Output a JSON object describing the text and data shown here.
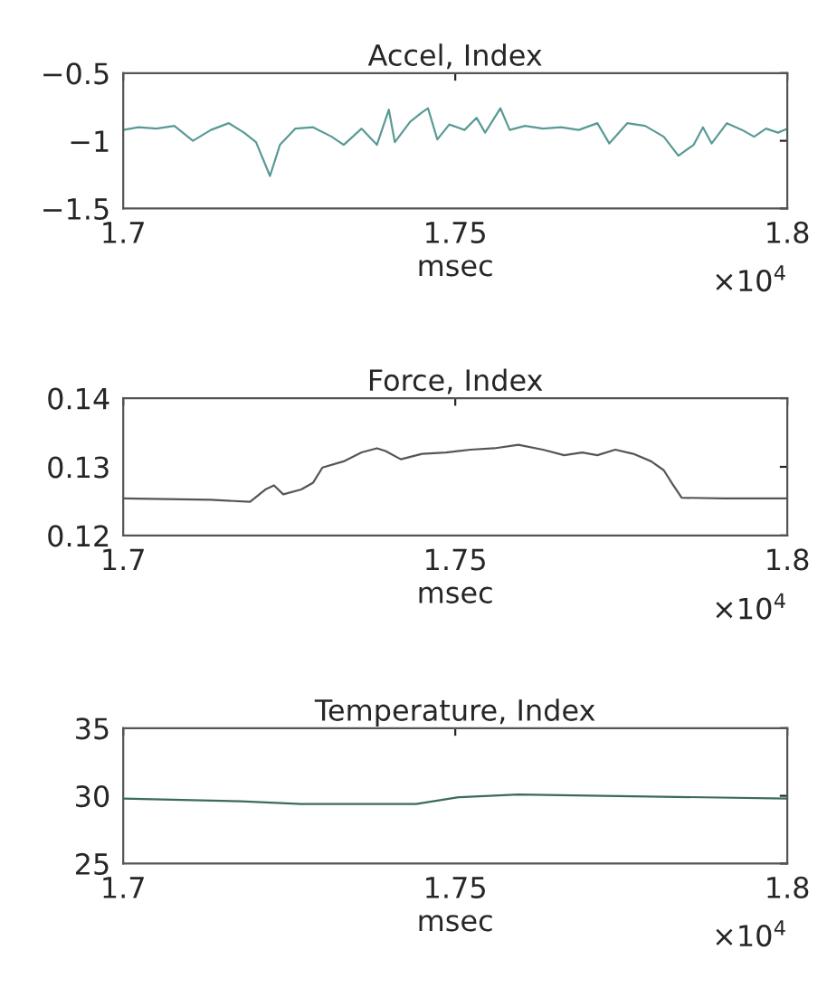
{
  "chart_data": [
    {
      "type": "line",
      "title": "Accel, Index",
      "xlabel": "msec",
      "annotations": [
        "×10$^{4}$"
      ],
      "grid": false,
      "legend": false,
      "xlim": [
        1.7,
        1.8
      ],
      "xticks": [
        1.7,
        1.75,
        1.8
      ],
      "ylim": [
        -1.5,
        -0.5
      ],
      "yticks": [
        {
          "value": -1.5,
          "label": "−1.5"
        },
        {
          "value": -1,
          "label": "−1"
        },
        {
          "value": -0.5,
          "label": "−0.5"
        }
      ],
      "series": [
        {
          "color": "#5a9a96",
          "x": [
            1.7,
            1.7023,
            1.705,
            1.7077,
            1.7105,
            1.7132,
            1.7159,
            1.7182,
            1.72,
            1.7221,
            1.7236,
            1.7259,
            1.7286,
            1.7314,
            1.7332,
            1.7359,
            1.7382,
            1.74,
            1.7409,
            1.7432,
            1.745,
            1.7459,
            1.7473,
            1.7491,
            1.7514,
            1.7532,
            1.7545,
            1.7568,
            1.7582,
            1.7605,
            1.7632,
            1.7659,
            1.7686,
            1.7714,
            1.7732,
            1.7759,
            1.7786,
            1.7814,
            1.7836,
            1.7859,
            1.7873,
            1.7886,
            1.7909,
            1.7932,
            1.795,
            1.7968,
            1.7986,
            1.8
          ],
          "values": [
            -0.92,
            -0.9,
            -0.91,
            -0.89,
            -1.0,
            -0.92,
            -0.87,
            -0.94,
            -1.01,
            -1.26,
            -1.03,
            -0.91,
            -0.9,
            -0.97,
            -1.03,
            -0.91,
            -1.03,
            -0.77,
            -1.01,
            -0.86,
            -0.79,
            -0.76,
            -0.99,
            -0.88,
            -0.92,
            -0.83,
            -0.94,
            -0.76,
            -0.92,
            -0.89,
            -0.91,
            -0.9,
            -0.92,
            -0.87,
            -1.02,
            -0.87,
            -0.89,
            -0.97,
            -1.11,
            -1.03,
            -0.9,
            -1.02,
            -0.87,
            -0.92,
            -0.97,
            -0.91,
            -0.94,
            -0.91
          ]
        }
      ]
    },
    {
      "type": "line",
      "title": "Force, Index",
      "xlabel": "msec",
      "annotations": [
        "×10$^{4}$"
      ],
      "grid": false,
      "legend": false,
      "xlim": [
        1.7,
        1.8
      ],
      "xticks": [
        1.7,
        1.75,
        1.8
      ],
      "ylim": [
        0.12,
        0.14
      ],
      "yticks": [
        0.12,
        0.13,
        0.14
      ],
      "series": [
        {
          "color": "#555555",
          "x": [
            1.7,
            1.7132,
            1.7191,
            1.7214,
            1.7227,
            1.7241,
            1.7268,
            1.7286,
            1.73,
            1.7332,
            1.7359,
            1.7382,
            1.7395,
            1.7418,
            1.745,
            1.7486,
            1.7523,
            1.7559,
            1.7595,
            1.7632,
            1.7664,
            1.7691,
            1.7714,
            1.7741,
            1.7768,
            1.7795,
            1.7814,
            1.7827,
            1.7841,
            1.7905,
            1.8
          ],
          "values": [
            0.1254,
            0.1252,
            0.1249,
            0.1267,
            0.1273,
            0.126,
            0.1267,
            0.1277,
            0.1299,
            0.1308,
            0.1321,
            0.1327,
            0.1323,
            0.1311,
            0.1319,
            0.1321,
            0.1325,
            0.1327,
            0.1332,
            0.1325,
            0.1317,
            0.1321,
            0.1317,
            0.1325,
            0.1319,
            0.1308,
            0.1295,
            0.1275,
            0.1255,
            0.1254,
            0.1254
          ]
        }
      ]
    },
    {
      "type": "line",
      "title": "Temperature, Index",
      "xlabel": "msec",
      "annotations": [
        "×10$^{4}$"
      ],
      "grid": false,
      "legend": false,
      "xlim": [
        1.7,
        1.8
      ],
      "xticks": [
        1.7,
        1.75,
        1.8
      ],
      "ylim": [
        25,
        35
      ],
      "yticks": [
        25,
        30,
        35
      ],
      "series": [
        {
          "color": "#3a6a60",
          "x": [
            1.7,
            1.7177,
            1.7268,
            1.7441,
            1.7505,
            1.7595,
            1.7723,
            1.8
          ],
          "values": [
            29.8,
            29.6,
            29.4,
            29.4,
            29.9,
            30.1,
            30.0,
            29.8
          ]
        }
      ]
    }
  ]
}
